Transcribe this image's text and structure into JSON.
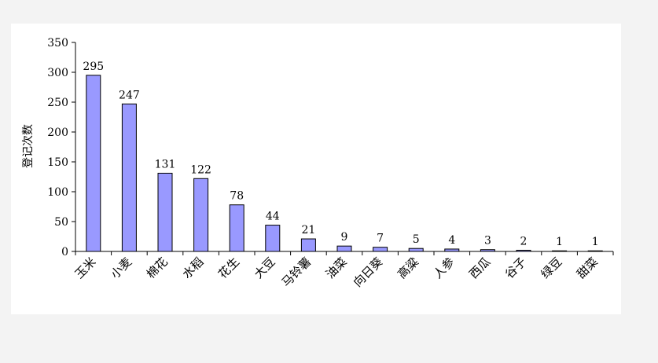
{
  "chart_data": {
    "type": "bar",
    "ylabel": "登记次数",
    "xlabel": "",
    "title": "",
    "ylim": [
      0,
      350
    ],
    "yticks": [
      0,
      50,
      100,
      150,
      200,
      250,
      300,
      350
    ],
    "grid": false,
    "legend": "none",
    "bar_color": "#9999ff",
    "bar_edge_color": "#000000",
    "categories": [
      "玉米",
      "小麦",
      "棉花",
      "水稻",
      "花生",
      "大豆",
      "马铃薯",
      "油菜",
      "向日葵",
      "高粱",
      "人参",
      "西瓜",
      "谷子",
      "绿豆",
      "甜菜"
    ],
    "values": [
      295,
      247,
      131,
      122,
      78,
      44,
      21,
      9,
      7,
      5,
      4,
      3,
      2,
      1,
      1
    ]
  }
}
